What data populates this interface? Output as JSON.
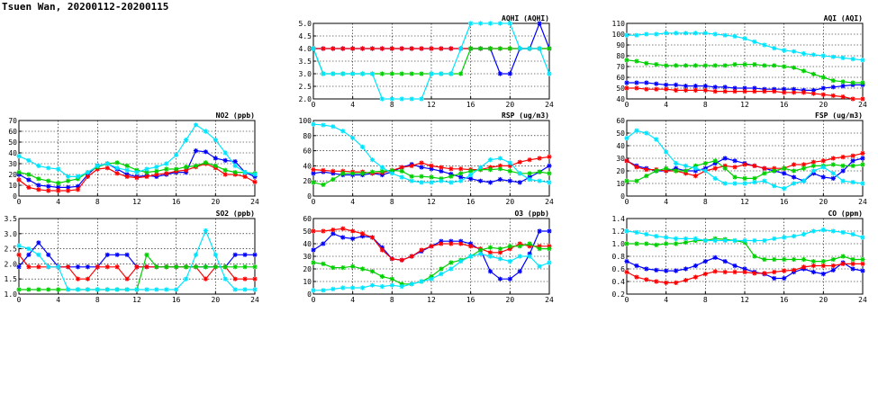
{
  "page": {
    "title": "Tsuen Wan, 20200112-20200115"
  },
  "series_colors": {
    "blue": "#0000ff",
    "red": "#ff0000",
    "green": "#00d000",
    "cyan": "#00e5ff"
  },
  "chart_data": [
    {
      "type": "line",
      "title": "AQHI (AQHI)",
      "xlim": [
        0,
        24
      ],
      "xticks": [
        0,
        4,
        8,
        12,
        16,
        20,
        24
      ],
      "ylim": [
        2.0,
        5.0
      ],
      "yticks": [
        2.0,
        2.5,
        3.0,
        3.5,
        4.0,
        4.5,
        5.0
      ],
      "ydecimals": 1,
      "grid": true,
      "series": [
        {
          "color": "blue",
          "values": [
            4,
            4,
            4,
            4,
            4,
            4,
            4,
            4,
            4,
            4,
            4,
            4,
            4,
            4,
            4,
            4,
            4,
            4,
            4,
            3,
            3,
            4,
            4,
            5,
            4
          ]
        },
        {
          "color": "red",
          "values": [
            4,
            4,
            4,
            4,
            4,
            4,
            4,
            4,
            4,
            4,
            4,
            4,
            4,
            4,
            4,
            4,
            4,
            4,
            4,
            4,
            4,
            4,
            4,
            4,
            4
          ]
        },
        {
          "color": "green",
          "values": [
            4,
            3,
            3,
            3,
            3,
            3,
            3,
            3,
            3,
            3,
            3,
            3,
            3,
            3,
            3,
            3,
            4,
            4,
            4,
            4,
            4,
            4,
            4,
            4,
            4
          ]
        },
        {
          "color": "cyan",
          "values": [
            4,
            3,
            3,
            3,
            3,
            3,
            3,
            2,
            2,
            2,
            2,
            2,
            3,
            3,
            3,
            4,
            5,
            5,
            5,
            5,
            5,
            4,
            4,
            4,
            3
          ]
        }
      ]
    },
    {
      "type": "line",
      "title": "AQI (AQI)",
      "xlim": [
        0,
        24
      ],
      "xticks": [
        0,
        4,
        8,
        12,
        16,
        20,
        24
      ],
      "ylim": [
        40,
        110
      ],
      "yticks": [
        40,
        50,
        60,
        70,
        80,
        90,
        100,
        110
      ],
      "ydecimals": 0,
      "grid": true,
      "series": [
        {
          "color": "blue",
          "values": [
            55,
            55,
            55,
            54,
            53,
            53,
            52,
            52,
            52,
            51,
            51,
            50,
            50,
            50,
            49,
            49,
            49,
            49,
            48,
            48,
            50,
            51,
            52,
            53,
            53
          ]
        },
        {
          "color": "red",
          "values": [
            50,
            50,
            49,
            49,
            49,
            48,
            48,
            48,
            48,
            47,
            47,
            47,
            47,
            47,
            47,
            47,
            46,
            46,
            46,
            45,
            44,
            43,
            42,
            40,
            40
          ]
        },
        {
          "color": "green",
          "values": [
            76,
            75,
            73,
            72,
            71,
            71,
            71,
            71,
            71,
            71,
            71,
            72,
            72,
            72,
            71,
            71,
            70,
            69,
            66,
            63,
            60,
            57,
            56,
            55,
            55
          ]
        },
        {
          "color": "cyan",
          "values": [
            99,
            99,
            100,
            100,
            101,
            101,
            101,
            101,
            101,
            100,
            99,
            98,
            96,
            93,
            90,
            87,
            85,
            84,
            82,
            81,
            80,
            79,
            78,
            77,
            76
          ]
        }
      ]
    },
    {
      "type": "line",
      "title": "NO2 (ppb)",
      "xlim": [
        0,
        24
      ],
      "xticks": [
        0,
        4,
        8,
        12,
        16,
        20,
        24
      ],
      "ylim": [
        0,
        70
      ],
      "yticks": [
        0,
        10,
        20,
        30,
        40,
        50,
        60,
        70
      ],
      "ydecimals": 0,
      "grid": true,
      "series": [
        {
          "color": "blue",
          "values": [
            20,
            15,
            10,
            9,
            8,
            8,
            9,
            20,
            28,
            30,
            25,
            20,
            18,
            19,
            18,
            20,
            22,
            22,
            42,
            41,
            35,
            33,
            32,
            22,
            18
          ]
        },
        {
          "color": "red",
          "values": [
            15,
            8,
            6,
            5,
            5,
            5,
            6,
            18,
            25,
            26,
            21,
            18,
            17,
            18,
            20,
            21,
            23,
            24,
            27,
            30,
            26,
            20,
            20,
            18,
            13
          ]
        },
        {
          "color": "green",
          "values": [
            22,
            20,
            16,
            14,
            12,
            14,
            16,
            22,
            27,
            30,
            31,
            28,
            24,
            22,
            23,
            25,
            25,
            27,
            28,
            31,
            28,
            24,
            22,
            22,
            21
          ]
        },
        {
          "color": "cyan",
          "values": [
            37,
            33,
            28,
            26,
            25,
            18,
            18,
            22,
            28,
            30,
            26,
            24,
            22,
            25,
            27,
            30,
            38,
            52,
            66,
            60,
            52,
            40,
            28,
            22,
            20
          ]
        }
      ]
    },
    {
      "type": "line",
      "title": "RSP (ug/m3)",
      "xlim": [
        0,
        24
      ],
      "xticks": [
        0,
        4,
        8,
        12,
        16,
        20,
        24
      ],
      "ylim": [
        0,
        100
      ],
      "yticks": [
        0,
        20,
        40,
        60,
        80,
        100
      ],
      "ydecimals": 0,
      "grid": true,
      "series": [
        {
          "color": "blue",
          "values": [
            30,
            32,
            30,
            28,
            28,
            28,
            30,
            28,
            32,
            38,
            42,
            38,
            36,
            33,
            29,
            25,
            23,
            20,
            18,
            22,
            20,
            18,
            25,
            32,
            40
          ]
        },
        {
          "color": "red",
          "values": [
            35,
            34,
            33,
            33,
            32,
            32,
            30,
            31,
            34,
            38,
            40,
            44,
            40,
            38,
            36,
            36,
            35,
            35,
            38,
            40,
            40,
            45,
            48,
            50,
            52
          ]
        },
        {
          "color": "green",
          "values": [
            18,
            15,
            22,
            30,
            30,
            30,
            32,
            33,
            34,
            33,
            26,
            26,
            25,
            23,
            26,
            30,
            33,
            35,
            35,
            36,
            33,
            30,
            30,
            32,
            30
          ]
        },
        {
          "color": "cyan",
          "values": [
            95,
            94,
            92,
            86,
            77,
            65,
            48,
            38,
            30,
            25,
            20,
            18,
            18,
            20,
            18,
            20,
            28,
            38,
            48,
            50,
            44,
            30,
            22,
            20,
            18
          ]
        }
      ]
    },
    {
      "type": "line",
      "title": "FSP (ug/m3)",
      "xlim": [
        0,
        24
      ],
      "xticks": [
        0,
        4,
        8,
        12,
        16,
        20,
        24
      ],
      "ylim": [
        0,
        60
      ],
      "yticks": [
        0,
        10,
        20,
        30,
        40,
        50,
        60
      ],
      "ydecimals": 0,
      "grid": true,
      "series": [
        {
          "color": "blue",
          "values": [
            28,
            24,
            22,
            20,
            20,
            22,
            20,
            20,
            22,
            26,
            30,
            28,
            26,
            24,
            22,
            20,
            18,
            15,
            12,
            18,
            15,
            14,
            20,
            28,
            30
          ]
        },
        {
          "color": "red",
          "values": [
            28,
            23,
            21,
            21,
            20,
            20,
            18,
            16,
            20,
            22,
            24,
            23,
            25,
            24,
            22,
            22,
            22,
            25,
            25,
            27,
            28,
            30,
            31,
            32,
            34
          ]
        },
        {
          "color": "green",
          "values": [
            12,
            12,
            16,
            20,
            22,
            20,
            20,
            24,
            26,
            28,
            22,
            15,
            14,
            14,
            18,
            20,
            22,
            20,
            22,
            24,
            24,
            25,
            24,
            24,
            25
          ]
        },
        {
          "color": "cyan",
          "values": [
            46,
            52,
            50,
            45,
            35,
            26,
            24,
            22,
            20,
            14,
            10,
            10,
            10,
            11,
            12,
            8,
            6,
            10,
            12,
            20,
            23,
            18,
            12,
            11,
            10
          ]
        }
      ]
    },
    {
      "type": "line",
      "title": "SO2 (ppb)",
      "xlim": [
        0,
        24
      ],
      "xticks": [
        0,
        4,
        8,
        12,
        16,
        20,
        24
      ],
      "ylim": [
        1.0,
        3.5
      ],
      "yticks": [
        1.0,
        1.5,
        2.0,
        2.5,
        3.0,
        3.5
      ],
      "ydecimals": 1,
      "grid": true,
      "series": [
        {
          "color": "blue",
          "values": [
            1.9,
            2.3,
            2.7,
            2.3,
            1.9,
            1.9,
            1.9,
            1.9,
            1.9,
            2.3,
            2.3,
            2.3,
            1.9,
            1.9,
            1.9,
            1.9,
            1.9,
            1.9,
            1.9,
            1.9,
            1.9,
            1.9,
            2.3,
            2.3,
            2.3
          ]
        },
        {
          "color": "red",
          "values": [
            2.3,
            1.9,
            1.9,
            1.9,
            1.9,
            1.9,
            1.5,
            1.5,
            1.9,
            1.9,
            1.9,
            1.5,
            1.9,
            1.9,
            1.9,
            1.9,
            1.9,
            1.9,
            1.9,
            1.5,
            1.9,
            1.9,
            1.5,
            1.5,
            1.5
          ]
        },
        {
          "color": "green",
          "values": [
            1.15,
            1.15,
            1.15,
            1.15,
            1.15,
            1.15,
            1.15,
            1.15,
            1.15,
            1.15,
            1.15,
            1.15,
            1.15,
            2.3,
            1.9,
            1.9,
            1.9,
            1.9,
            1.9,
            1.9,
            1.9,
            1.9,
            1.9,
            1.9,
            1.9
          ]
        },
        {
          "color": "cyan",
          "values": [
            2.6,
            2.5,
            2.3,
            1.9,
            1.9,
            1.15,
            1.15,
            1.15,
            1.15,
            1.15,
            1.15,
            1.15,
            1.15,
            1.15,
            1.15,
            1.15,
            1.15,
            1.5,
            2.3,
            3.1,
            2.3,
            1.5,
            1.15,
            1.15,
            1.15
          ]
        }
      ]
    },
    {
      "type": "line",
      "title": "O3 (ppb)",
      "xlim": [
        0,
        24
      ],
      "xticks": [
        0,
        4,
        8,
        12,
        16,
        20,
        24
      ],
      "ylim": [
        0,
        60
      ],
      "yticks": [
        0,
        10,
        20,
        30,
        40,
        50,
        60
      ],
      "ydecimals": 0,
      "grid": true,
      "series": [
        {
          "color": "blue",
          "values": [
            35,
            40,
            48,
            45,
            44,
            46,
            45,
            37,
            28,
            27,
            30,
            34,
            38,
            42,
            42,
            42,
            40,
            35,
            18,
            12,
            12,
            18,
            32,
            50,
            50
          ]
        },
        {
          "color": "red",
          "values": [
            50,
            50,
            51,
            52,
            50,
            48,
            45,
            35,
            28,
            27,
            30,
            35,
            38,
            40,
            40,
            40,
            38,
            36,
            33,
            33,
            36,
            40,
            38,
            38,
            38
          ]
        },
        {
          "color": "green",
          "values": [
            25,
            24,
            21,
            21,
            22,
            20,
            18,
            14,
            12,
            8,
            8,
            10,
            14,
            20,
            25,
            27,
            30,
            35,
            37,
            36,
            38,
            38,
            40,
            36,
            36
          ]
        },
        {
          "color": "cyan",
          "values": [
            3,
            3,
            4,
            5,
            5,
            5,
            7,
            6,
            7,
            6,
            8,
            10,
            12,
            16,
            20,
            26,
            30,
            32,
            30,
            28,
            26,
            30,
            30,
            22,
            25
          ]
        }
      ]
    },
    {
      "type": "line",
      "title": "CO (ppm)",
      "xlim": [
        0,
        24
      ],
      "xticks": [
        0,
        4,
        8,
        12,
        16,
        20,
        24
      ],
      "ylim": [
        0.2,
        1.4
      ],
      "yticks": [
        0.2,
        0.4,
        0.6,
        0.8,
        1.0,
        1.2,
        1.4
      ],
      "ydecimals": 1,
      "grid": true,
      "series": [
        {
          "color": "blue",
          "values": [
            0.72,
            0.65,
            0.6,
            0.58,
            0.57,
            0.57,
            0.6,
            0.65,
            0.72,
            0.78,
            0.72,
            0.65,
            0.6,
            0.55,
            0.52,
            0.45,
            0.45,
            0.55,
            0.6,
            0.55,
            0.52,
            0.58,
            0.7,
            0.6,
            0.57
          ]
        },
        {
          "color": "red",
          "values": [
            0.55,
            0.47,
            0.43,
            0.4,
            0.38,
            0.38,
            0.42,
            0.47,
            0.52,
            0.56,
            0.55,
            0.55,
            0.55,
            0.53,
            0.53,
            0.55,
            0.57,
            0.58,
            0.63,
            0.65,
            0.65,
            0.65,
            0.68,
            0.68,
            0.68
          ]
        },
        {
          "color": "green",
          "values": [
            1.0,
            1.0,
            1.0,
            0.98,
            1.0,
            1.0,
            1.02,
            1.05,
            1.05,
            1.08,
            1.07,
            1.05,
            1.02,
            0.8,
            0.75,
            0.75,
            0.75,
            0.75,
            0.75,
            0.72,
            0.72,
            0.75,
            0.8,
            0.75,
            0.75
          ]
        },
        {
          "color": "cyan",
          "values": [
            1.2,
            1.18,
            1.15,
            1.12,
            1.1,
            1.08,
            1.08,
            1.08,
            1.05,
            1.05,
            1.05,
            1.05,
            1.05,
            1.05,
            1.05,
            1.08,
            1.1,
            1.12,
            1.15,
            1.2,
            1.22,
            1.2,
            1.18,
            1.15,
            1.1
          ]
        }
      ]
    }
  ]
}
